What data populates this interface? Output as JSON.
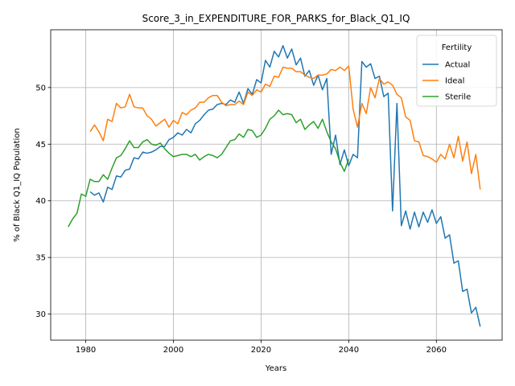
{
  "chart_data": {
    "type": "line",
    "title": "Score_3_in_EXPENDITURE_FOR_PARKS_for_Black_Q1_IQ",
    "xlabel": "Years",
    "ylabel": "% of Black Q1_IQ Population",
    "xlim": [
      1972,
      2075
    ],
    "ylim": [
      27.7,
      55.1
    ],
    "xticks": [
      1980,
      2000,
      2020,
      2040,
      2060
    ],
    "yticks": [
      30,
      35,
      40,
      45,
      50
    ],
    "grid": true,
    "legend": {
      "title": "Fertility",
      "placement": "top-right"
    },
    "series": [
      {
        "name": "Actual",
        "color": "#1f77b4",
        "x": [
          1981,
          1982,
          1983,
          1984,
          1985,
          1986,
          1987,
          1988,
          1989,
          1990,
          1991,
          1992,
          1993,
          1994,
          1995,
          1996,
          1997,
          1998,
          1999,
          2000,
          2001,
          2002,
          2003,
          2004,
          2005,
          2006,
          2007,
          2008,
          2009,
          2010,
          2011,
          2012,
          2013,
          2014,
          2015,
          2016,
          2017,
          2018,
          2019,
          2020,
          2021,
          2022,
          2023,
          2024,
          2025,
          2026,
          2027,
          2028,
          2029,
          2030,
          2031,
          2032,
          2033,
          2034,
          2035,
          2036,
          2037,
          2038,
          2039,
          2040,
          2041,
          2042,
          2043,
          2044,
          2045,
          2046,
          2047,
          2048,
          2049,
          2050,
          2051,
          2052,
          2053,
          2054,
          2055,
          2056,
          2057,
          2058,
          2059,
          2060,
          2061,
          2062,
          2063,
          2064,
          2065,
          2066,
          2067,
          2068,
          2069,
          2070
        ],
        "values": [
          40.8,
          40.5,
          40.7,
          39.9,
          41.2,
          41.0,
          42.2,
          42.1,
          42.7,
          42.8,
          43.8,
          43.7,
          44.3,
          44.2,
          44.3,
          44.5,
          44.8,
          44.8,
          45.4,
          45.6,
          46.0,
          45.8,
          46.3,
          46.0,
          46.8,
          47.1,
          47.6,
          48.0,
          48.1,
          48.5,
          48.6,
          48.5,
          48.9,
          48.7,
          49.6,
          48.6,
          49.9,
          49.4,
          50.7,
          50.4,
          52.4,
          51.8,
          53.2,
          52.7,
          53.7,
          52.6,
          53.4,
          52.0,
          52.6,
          51.0,
          51.5,
          50.2,
          51.1,
          49.8,
          50.8,
          44.1,
          45.8,
          43.2,
          44.5,
          43.1,
          44.1,
          43.8,
          52.3,
          51.8,
          52.1,
          50.8,
          51.0,
          49.2,
          49.5,
          39.1,
          48.6,
          37.8,
          39.1,
          37.5,
          39.0,
          37.7,
          39.0,
          38.1,
          39.2,
          38.0,
          38.6,
          36.7,
          37.0,
          34.5,
          34.7,
          32.0,
          32.2,
          30.1,
          30.6,
          28.9
        ]
      },
      {
        "name": "Ideal",
        "color": "#ff7f0e",
        "x": [
          1981,
          1982,
          1983,
          1984,
          1985,
          1986,
          1987,
          1988,
          1989,
          1990,
          1991,
          1992,
          1993,
          1994,
          1995,
          1996,
          1997,
          1998,
          1999,
          2000,
          2001,
          2002,
          2003,
          2004,
          2005,
          2006,
          2007,
          2008,
          2009,
          2010,
          2011,
          2012,
          2013,
          2014,
          2015,
          2016,
          2017,
          2018,
          2019,
          2020,
          2021,
          2022,
          2023,
          2024,
          2025,
          2026,
          2027,
          2028,
          2029,
          2030,
          2031,
          2032,
          2033,
          2034,
          2035,
          2036,
          2037,
          2038,
          2039,
          2040,
          2041,
          2042,
          2043,
          2044,
          2045,
          2046,
          2047,
          2048,
          2049,
          2050,
          2051,
          2052,
          2053,
          2054,
          2055,
          2056,
          2057,
          2058,
          2059,
          2060,
          2061,
          2062,
          2063,
          2064,
          2065,
          2066,
          2067,
          2068,
          2069,
          2070
        ],
        "values": [
          46.1,
          46.7,
          46.1,
          45.3,
          47.2,
          47.0,
          48.6,
          48.2,
          48.3,
          49.4,
          48.3,
          48.2,
          48.2,
          47.5,
          47.2,
          46.6,
          46.9,
          47.2,
          46.5,
          47.1,
          46.8,
          47.8,
          47.6,
          48.0,
          48.2,
          48.7,
          48.7,
          49.1,
          49.3,
          49.3,
          48.7,
          48.4,
          48.5,
          48.5,
          48.8,
          48.5,
          49.6,
          49.3,
          49.8,
          49.6,
          50.3,
          50.1,
          51.0,
          50.9,
          51.8,
          51.7,
          51.7,
          51.4,
          51.4,
          51.1,
          50.9,
          50.8,
          51.1,
          51.1,
          51.2,
          51.6,
          51.5,
          51.8,
          51.5,
          51.9,
          48.1,
          46.5,
          48.6,
          47.7,
          50.0,
          49.1,
          50.8,
          50.3,
          50.5,
          50.2,
          49.4,
          49.1,
          47.4,
          47.1,
          45.3,
          45.2,
          44.0,
          43.9,
          43.7,
          43.4,
          44.1,
          43.7,
          45.0,
          43.8,
          45.7,
          43.5,
          45.2,
          42.4,
          44.1,
          41.0
        ]
      },
      {
        "name": "Sterile",
        "color": "#2ca02c",
        "x": [
          1976,
          1977,
          1978,
          1979,
          1980,
          1981,
          1982,
          1983,
          1984,
          1985,
          1986,
          1987,
          1988,
          1989,
          1990,
          1991,
          1992,
          1993,
          1994,
          1995,
          1996,
          1997,
          1998,
          1999,
          2000,
          2001,
          2002,
          2003,
          2004,
          2005,
          2006,
          2007,
          2008,
          2009,
          2010,
          2011,
          2012,
          2013,
          2014,
          2015,
          2016,
          2017,
          2018,
          2019,
          2020,
          2021,
          2022,
          2023,
          2024,
          2025,
          2026,
          2027,
          2028,
          2029,
          2030,
          2031,
          2032,
          2033,
          2034,
          2035,
          2036,
          2037,
          2038,
          2039,
          2040
        ],
        "values": [
          37.7,
          38.4,
          38.9,
          40.6,
          40.4,
          41.9,
          41.7,
          41.7,
          42.3,
          41.9,
          42.9,
          43.8,
          44.0,
          44.6,
          45.3,
          44.7,
          44.7,
          45.2,
          45.4,
          45.0,
          44.9,
          45.1,
          44.6,
          44.2,
          43.9,
          44.0,
          44.1,
          44.1,
          43.9,
          44.1,
          43.6,
          43.9,
          44.1,
          44.0,
          43.8,
          44.1,
          44.7,
          45.3,
          45.4,
          45.9,
          45.6,
          46.3,
          46.2,
          45.6,
          45.8,
          46.4,
          47.2,
          47.5,
          48.0,
          47.6,
          47.7,
          47.6,
          46.9,
          47.2,
          46.3,
          46.7,
          47.0,
          46.4,
          47.2,
          46.1,
          45.2,
          44.6,
          43.4,
          42.6,
          43.7
        ]
      }
    ]
  }
}
